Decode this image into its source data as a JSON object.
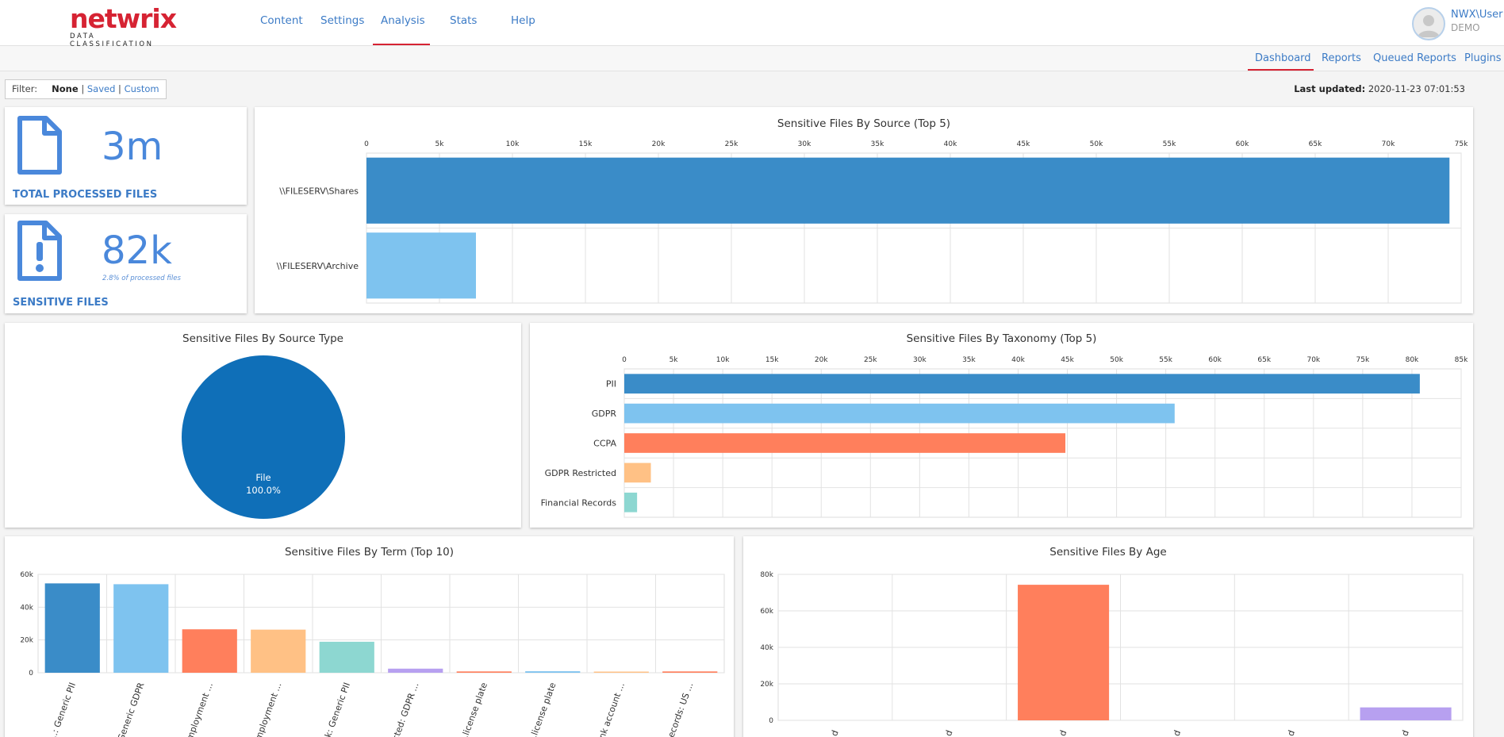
{
  "brand": {
    "name": "netwrix",
    "tagline": "DATA CLASSIFICATION"
  },
  "nav": {
    "items": [
      "Content",
      "Settings",
      "Analysis",
      "Stats",
      "Help"
    ],
    "active": "Analysis"
  },
  "user": {
    "name": "NWX\\User",
    "org": "DEMO"
  },
  "subnav": {
    "items": [
      "Dashboard",
      "Reports",
      "Queued Reports",
      "Plugins"
    ],
    "active": "Dashboard"
  },
  "filter": {
    "label": "Filter:",
    "none": "None",
    "saved": "Saved",
    "custom": "Custom",
    "sep": "|"
  },
  "last_updated": {
    "label": "Last updated:",
    "value": "2020-11-23 07:01:53"
  },
  "stats": {
    "total": {
      "value": "3m",
      "label": "TOTAL PROCESSED FILES"
    },
    "sensitive": {
      "value": "82k",
      "label": "SENSITIVE FILES",
      "note": "2.8% of processed files"
    }
  },
  "colors": {
    "blue_dark": "#3a8cc8",
    "blue_light": "#7ec3ef",
    "orange": "#ff7f5c",
    "peach": "#ffc185",
    "teal": "#8dd7d1",
    "purple": "#b7a0f0",
    "pie": "#0f6fb8",
    "accent": "#d62333",
    "link": "#3c7bc6"
  },
  "chart_data": [
    {
      "id": "by-source",
      "type": "bar",
      "orientation": "horizontal",
      "title": "Sensitive Files By Source (Top 5)",
      "categories": [
        "\\\\FILESERV\\Shares",
        "\\\\FILESERV\\Archive"
      ],
      "values": [
        74200,
        7500
      ],
      "colors": [
        "#3a8cc8",
        "#7ec3ef"
      ],
      "xlim": [
        0,
        75000
      ],
      "ticks": [
        "0",
        "5k",
        "10k",
        "15k",
        "20k",
        "25k",
        "30k",
        "35k",
        "40k",
        "45k",
        "50k",
        "55k",
        "60k",
        "65k",
        "70k",
        "75k"
      ],
      "tick_axis": "top"
    },
    {
      "id": "by-source-type",
      "type": "pie",
      "title": "Sensitive Files By Source Type",
      "categories": [
        "File"
      ],
      "values": [
        100.0
      ],
      "labels": [
        "100.0%"
      ],
      "colors": [
        "#0f6fb8"
      ]
    },
    {
      "id": "by-taxonomy",
      "type": "bar",
      "orientation": "horizontal",
      "title": "Sensitive Files By Taxonomy (Top 5)",
      "categories": [
        "PII",
        "GDPR",
        "CCPA",
        "GDPR Restricted",
        "Financial Records"
      ],
      "values": [
        80800,
        55900,
        44800,
        2700,
        1300
      ],
      "colors": [
        "#3a8cc8",
        "#7ec3ef",
        "#ff7f5c",
        "#ffc185",
        "#8dd7d1"
      ],
      "xlim": [
        0,
        85000
      ],
      "ticks": [
        "0",
        "5k",
        "10k",
        "15k",
        "20k",
        "25k",
        "30k",
        "35k",
        "40k",
        "45k",
        "50k",
        "55k",
        "60k",
        "65k",
        "70k",
        "75k",
        "80k",
        "85k"
      ],
      "tick_axis": "top"
    },
    {
      "id": "by-term",
      "type": "bar",
      "orientation": "vertical",
      "title": "Sensitive Files By Term (Top 10)",
      "categories": [
        "...: Generic PII",
        "...Generic GDPR",
        "...mployment ...",
        "...mployment ...",
        "...k: Generic PII",
        "...cted: GDPR ...",
        "...license plate",
        "...license plate",
        "...nk account ...",
        "...Records: US ..."
      ],
      "values": [
        54500,
        54000,
        26500,
        26300,
        18900,
        2500,
        800,
        900,
        700,
        800
      ],
      "colors": [
        "#3a8cc8",
        "#7ec3ef",
        "#ff7f5c",
        "#ffc185",
        "#8dd7d1",
        "#b7a0f0",
        "#ff7f5c",
        "#7ec3ef",
        "#ffc185",
        "#ff7f5c"
      ],
      "ylim": [
        0,
        60000
      ],
      "ticks": [
        "0",
        "20k",
        "40k",
        "60k"
      ]
    },
    {
      "id": "by-age",
      "type": "bar",
      "orientation": "vertical",
      "title": "Sensitive Files By Age",
      "categories": [
        "d",
        "d",
        "d",
        "d",
        "d",
        "d"
      ],
      "values": [
        0,
        0,
        74300,
        0,
        0,
        7100
      ],
      "colors": [
        "#3a8cc8",
        "#7ec3ef",
        "#ff7f5c",
        "#ffc185",
        "#8dd7d1",
        "#b7a0f0"
      ],
      "ylim": [
        0,
        80000
      ],
      "ticks": [
        "0",
        "20k",
        "40k",
        "60k",
        "80k"
      ]
    }
  ]
}
